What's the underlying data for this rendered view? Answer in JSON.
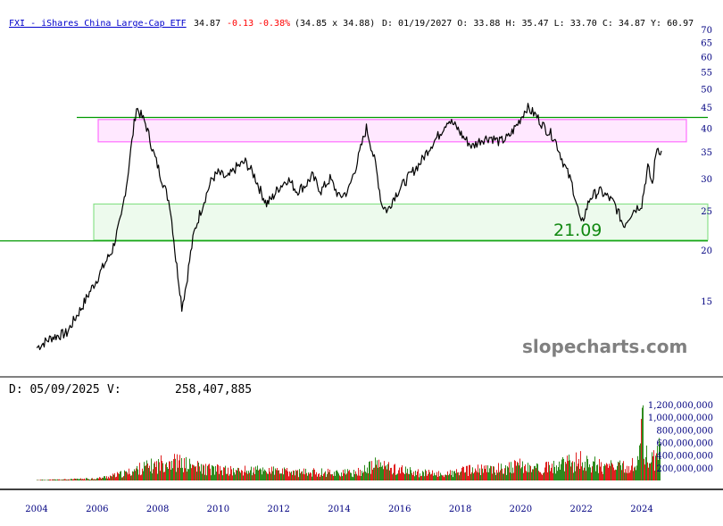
{
  "header": {
    "ticker_link": "FXI - iShares China Large-Cap ETF",
    "last": "34.87",
    "change": "-0.13",
    "change_pct": "-0.38%",
    "bid_ask": "(34.85 x 34.88)",
    "ohlc": "D: 01/19/2027 O: 33.88 H: 35.47 L: 33.70 C: 34.87 Y: 60.97"
  },
  "watermark": "slopecharts.com",
  "annotation": "21.09",
  "volume_header": {
    "date_label": "D: 05/09/2025",
    "volume_label": "V:",
    "volume_value": "258,407,885"
  },
  "colors": {
    "price_line": "#000000",
    "resistance_band": "#ff00ff",
    "support_band": "#33cc33",
    "horizontal_line": "#009900",
    "annotation": "#118811",
    "volume_up": "#2e8b1e",
    "volume_down": "#e02020",
    "axis_text": "#000080",
    "change_negative": "#ff0000",
    "link": "#0000cc"
  },
  "chart_data": {
    "type": "line",
    "price_axis": {
      "scale": "log",
      "ticks": [
        15,
        20,
        25,
        30,
        35,
        40,
        45,
        50,
        55,
        60,
        65,
        70
      ]
    },
    "x_axis": {
      "ticks": [
        "2004",
        "2006",
        "2008",
        "2010",
        "2012",
        "2014",
        "2016",
        "2018",
        "2020",
        "2022",
        "2024"
      ]
    },
    "price_series": {
      "x": [
        2004.0,
        2004.5,
        2005.0,
        2005.5,
        2006.0,
        2006.5,
        2006.8,
        2007.0,
        2007.15,
        2007.3,
        2007.6,
        2007.85,
        2008.1,
        2008.4,
        2008.6,
        2008.8,
        2008.95,
        2009.2,
        2009.5,
        2009.8,
        2010.0,
        2010.3,
        2010.6,
        2010.9,
        2011.2,
        2011.4,
        2011.6,
        2011.8,
        2012.0,
        2012.3,
        2012.6,
        2012.9,
        2013.1,
        2013.4,
        2013.7,
        2014.0,
        2014.3,
        2014.6,
        2014.9,
        2015.2,
        2015.4,
        2015.6,
        2015.8,
        2016.1,
        2016.4,
        2016.7,
        2017.0,
        2017.3,
        2017.6,
        2017.9,
        2018.1,
        2018.4,
        2018.7,
        2019.0,
        2019.3,
        2019.6,
        2019.9,
        2020.2,
        2020.5,
        2020.8,
        2021.1,
        2021.4,
        2021.7,
        2022.0,
        2022.3,
        2022.6,
        2022.9,
        2023.1,
        2023.4,
        2023.7,
        2024.0,
        2024.2,
        2024.35,
        2024.5,
        2024.65
      ],
      "y": [
        11.5,
        12.2,
        12.5,
        14.5,
        17.0,
        20.0,
        24.0,
        30.0,
        37.0,
        45.0,
        41.0,
        35.0,
        30.5,
        26.0,
        19.0,
        14.5,
        16.5,
        22.0,
        26.0,
        30.0,
        31.0,
        30.0,
        32.0,
        33.0,
        30.5,
        28.0,
        26.0,
        27.0,
        28.5,
        30.0,
        28.0,
        29.0,
        30.5,
        28.0,
        30.0,
        27.0,
        28.0,
        33.0,
        40.0,
        32.5,
        26.0,
        25.0,
        27.0,
        29.0,
        31.0,
        33.0,
        36.0,
        38.5,
        42.0,
        40.0,
        38.0,
        36.0,
        37.5,
        38.0,
        37.0,
        38.0,
        41.0,
        45.0,
        43.0,
        40.0,
        38.0,
        33.0,
        29.0,
        23.0,
        27.0,
        28.0,
        27.0,
        26.0,
        23.0,
        25.0,
        26.0,
        32.0,
        29.0,
        36.0,
        34.87
      ]
    },
    "horizontal_lines": [
      42.5,
      21.09
    ],
    "bands": [
      {
        "from": 37.0,
        "to": 42.0,
        "color": "#ff00ff"
      },
      {
        "from": 21.2,
        "to": 26.0,
        "color": "#33cc33"
      }
    ],
    "volume_axis": {
      "ticks": [
        "200,000,000",
        "400,000,000",
        "600,000,000",
        "800,000,000",
        "1,000,000,000",
        "1,200,000,000"
      ],
      "values": [
        200000000,
        400000000,
        600000000,
        800000000,
        1000000000,
        1200000000
      ]
    },
    "volume_series": {
      "x": [
        2004.0,
        2005.0,
        2006.0,
        2006.5,
        2007.0,
        2007.5,
        2008.0,
        2008.3,
        2008.8,
        2009.5,
        2010.5,
        2011.5,
        2012.5,
        2013.5,
        2014.5,
        2015.3,
        2015.6,
        2016.5,
        2017.5,
        2018.3,
        2019.0,
        2020.0,
        2020.5,
        2021.0,
        2021.5,
        2022.0,
        2022.5,
        2023.0,
        2023.5,
        2023.9,
        2024.0,
        2024.1,
        2024.3,
        2024.6
      ],
      "values": [
        10000000,
        20000000,
        40000000,
        90000000,
        150000000,
        250000000,
        300000000,
        400000000,
        320000000,
        230000000,
        180000000,
        200000000,
        150000000,
        160000000,
        140000000,
        320000000,
        250000000,
        150000000,
        120000000,
        200000000,
        210000000,
        280000000,
        230000000,
        250000000,
        320000000,
        380000000,
        300000000,
        260000000,
        250000000,
        380000000,
        1150000000,
        550000000,
        350000000,
        580000000
      ]
    }
  }
}
